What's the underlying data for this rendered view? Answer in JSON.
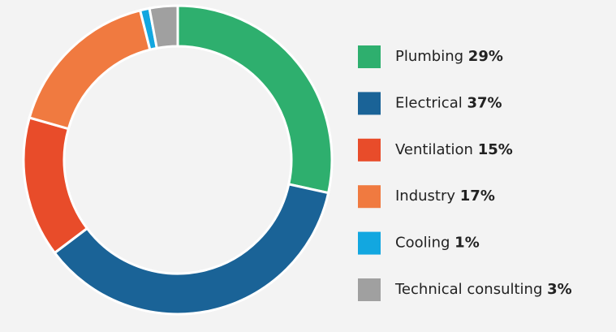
{
  "chart_data": {
    "type": "donut",
    "categories": [
      "Plumbing",
      "Electrical",
      "Ventilation",
      "Industry",
      "Cooling",
      "Technical consulting"
    ],
    "values": [
      29,
      37,
      15,
      17,
      1,
      3
    ],
    "value_labels": [
      "29%",
      "37%",
      "15%",
      "17%",
      "1%",
      "3%"
    ],
    "colors": [
      "#2eaf6e",
      "#1a6397",
      "#e84c2a",
      "#f07a40",
      "#12a7e0",
      "#a0a0a0"
    ],
    "legend": "right"
  }
}
